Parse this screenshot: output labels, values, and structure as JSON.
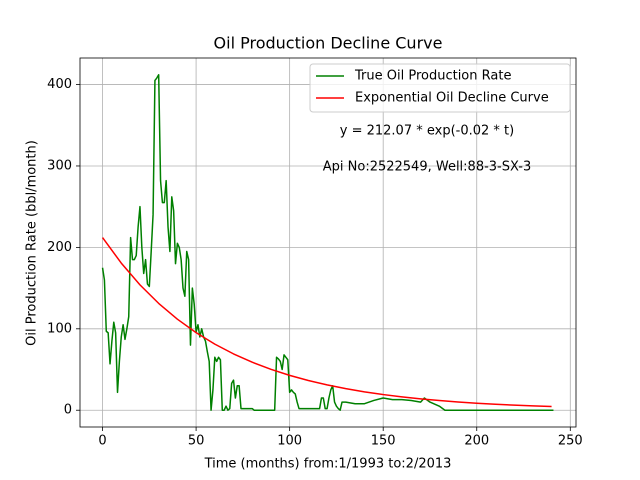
{
  "chart_data": {
    "type": "line",
    "title": "Oil Production Decline Curve",
    "xlabel": "Time (months) from:1/1993 to:2/2013",
    "ylabel": "Oil Production Rate (bbl/month)",
    "xlim": [
      -12.05,
      253.05
    ],
    "ylim": [
      -20.6,
      432.6
    ],
    "xticks": [
      0,
      50,
      100,
      150,
      200,
      250
    ],
    "yticks": [
      0,
      100,
      200,
      300,
      400
    ],
    "grid": true,
    "legend": "upper right",
    "annotations": [
      "y = 212.07 * exp(-0.02 * t)",
      "Api No:2522549, Well:88-3-SX-3"
    ],
    "series": [
      {
        "name": "True Oil Production Rate",
        "color": "#008000",
        "x": [
          0,
          1,
          2,
          3,
          4,
          5,
          6,
          7,
          8,
          9,
          10,
          11,
          12,
          13,
          14,
          15,
          16,
          17,
          18,
          19,
          20,
          21,
          22,
          23,
          24,
          25,
          26,
          27,
          28,
          29,
          30,
          31,
          32,
          33,
          34,
          35,
          36,
          37,
          38,
          39,
          40,
          41,
          42,
          43,
          44,
          45,
          46,
          47,
          48,
          49,
          50,
          51,
          52,
          53,
          54,
          55,
          56,
          57,
          58,
          59,
          60,
          61,
          62,
          63,
          64,
          65,
          66,
          67,
          68,
          69,
          70,
          71,
          72,
          73,
          74,
          80,
          81,
          92,
          93,
          94,
          95,
          96,
          97,
          98,
          99,
          100,
          101,
          102,
          103,
          104,
          105,
          116,
          117,
          118,
          119,
          120,
          121,
          122,
          123,
          124,
          125,
          126,
          127,
          128,
          130,
          135,
          140,
          145,
          150,
          155,
          160,
          165,
          170,
          172,
          175,
          180,
          183,
          241
        ],
        "values": [
          175,
          160,
          97,
          95,
          57,
          85,
          108,
          95,
          22,
          60,
          90,
          105,
          87,
          100,
          115,
          212,
          185,
          185,
          190,
          225,
          250,
          200,
          168,
          185,
          155,
          152,
          195,
          240,
          405,
          408,
          412,
          282,
          255,
          255,
          282,
          225,
          195,
          262,
          245,
          180,
          205,
          200,
          185,
          150,
          140,
          195,
          185,
          80,
          150,
          130,
          96,
          105,
          90,
          100,
          90,
          85,
          72,
          60,
          0,
          25,
          65,
          60,
          65,
          62,
          0,
          0,
          5,
          0,
          2,
          33,
          37,
          15,
          30,
          30,
          2,
          2,
          0,
          0,
          65,
          63,
          60,
          50,
          68,
          65,
          62,
          22,
          25,
          22,
          20,
          10,
          2,
          2,
          15,
          15,
          2,
          2,
          15,
          25,
          30,
          10,
          5,
          2,
          0,
          10,
          10,
          8,
          8,
          12,
          15,
          13,
          13,
          12,
          10,
          15,
          10,
          5,
          0,
          0
        ]
      },
      {
        "name": "Exponential Oil Decline Curve",
        "color": "#ff0000",
        "x": [
          0,
          10,
          20,
          30,
          40,
          50,
          60,
          70,
          80,
          90,
          100,
          110,
          120,
          130,
          140,
          150,
          160,
          170,
          180,
          190,
          200,
          210,
          220,
          230,
          240
        ],
        "values": [
          212.07,
          180.71,
          153.99,
          131.22,
          111.82,
          95.28,
          81.2,
          69.19,
          58.96,
          50.24,
          42.81,
          36.48,
          31.09,
          26.49,
          22.57,
          19.24,
          16.39,
          13.97,
          11.9,
          10.14,
          8.64,
          7.37,
          6.28,
          5.35,
          4.56
        ]
      }
    ]
  }
}
